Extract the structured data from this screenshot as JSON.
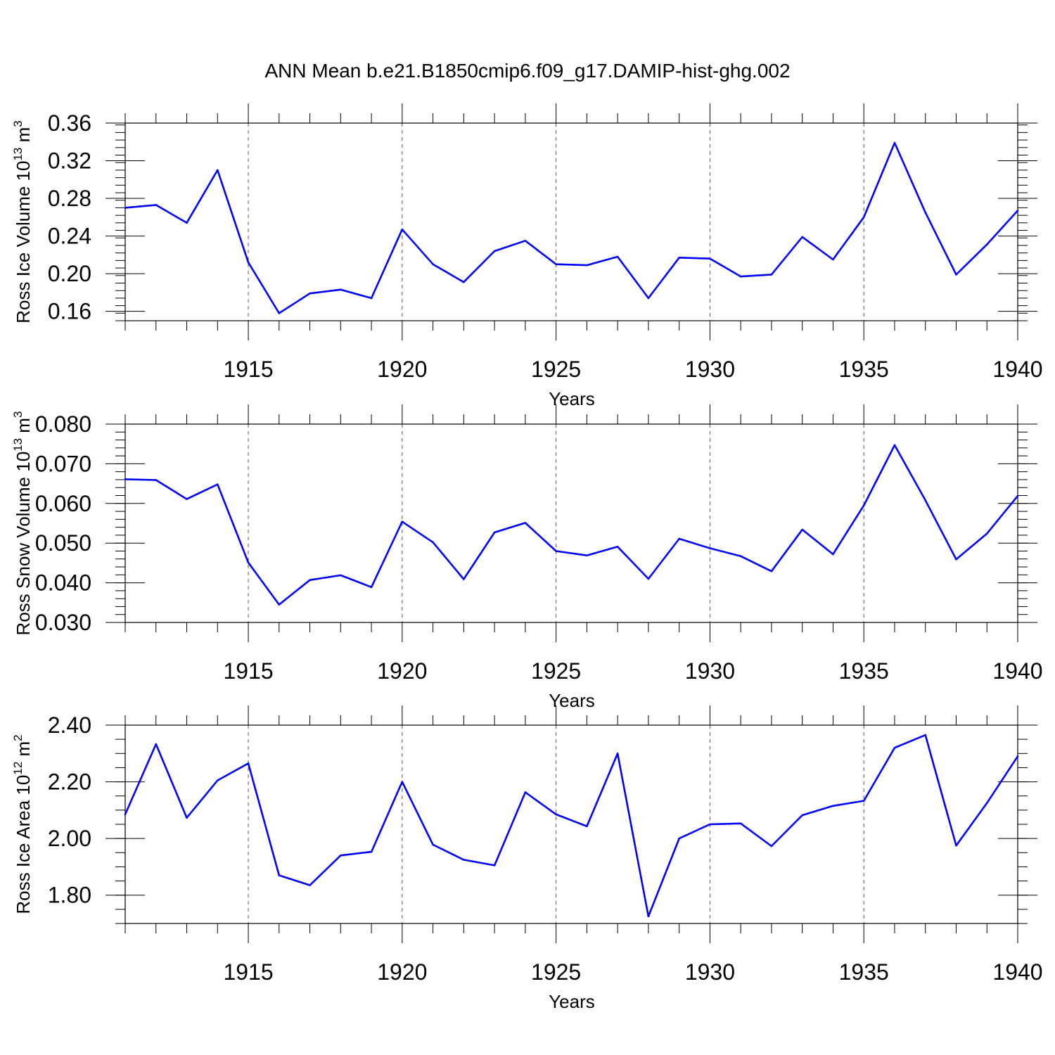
{
  "figure": {
    "title": "ANN Mean b.e21.B1850cmip6.f09_g17.DAMIP-hist-ghg.002",
    "line_color": "#0000ff"
  },
  "chart_data": [
    {
      "type": "line",
      "title": "",
      "xlabel": "Years",
      "ylabel": {
        "pre": "Ross Ice Volume 10",
        "exp": "13",
        "post": " m",
        "exp2": "3"
      },
      "xlim": [
        1911,
        1940
      ],
      "ylim": [
        0.15,
        0.36
      ],
      "x_ticks": [
        1915,
        1920,
        1925,
        1930,
        1935,
        1940
      ],
      "x_tick_labels": [
        "1915",
        "1920",
        "1925",
        "1930",
        "1935",
        "1940"
      ],
      "y_ticks": [
        0.16,
        0.2,
        0.24,
        0.28,
        0.32,
        0.36
      ],
      "y_tick_labels": [
        "0.16",
        "0.20",
        "0.24",
        "0.28",
        "0.32",
        "0.36"
      ],
      "y_minor_step": 0.008,
      "grid": "vertical-dashed",
      "series": [
        {
          "x": [
            1911,
            1912,
            1913,
            1914,
            1915,
            1916,
            1917,
            1918,
            1919,
            1920,
            1921,
            1922,
            1923,
            1924,
            1925,
            1926,
            1927,
            1928,
            1929,
            1930,
            1931,
            1932,
            1933,
            1934,
            1935,
            1936,
            1937,
            1938,
            1939,
            1940
          ],
          "values": [
            0.27,
            0.273,
            0.254,
            0.31,
            0.212,
            0.158,
            0.179,
            0.183,
            0.174,
            0.247,
            0.21,
            0.191,
            0.224,
            0.235,
            0.21,
            0.209,
            0.218,
            0.174,
            0.217,
            0.216,
            0.197,
            0.199,
            0.239,
            0.215,
            0.26,
            0.339,
            0.265,
            0.199,
            0.231,
            0.267
          ]
        }
      ]
    },
    {
      "type": "line",
      "title": "",
      "xlabel": "Years",
      "ylabel": {
        "pre": "Ross Snow Volume 10",
        "exp": "13",
        "post": " m",
        "exp2": "3"
      },
      "xlim": [
        1911,
        1940
      ],
      "ylim": [
        0.03,
        0.08
      ],
      "x_ticks": [
        1915,
        1920,
        1925,
        1930,
        1935,
        1940
      ],
      "x_tick_labels": [
        "1915",
        "1920",
        "1925",
        "1930",
        "1935",
        "1940"
      ],
      "y_ticks": [
        0.03,
        0.04,
        0.05,
        0.06,
        0.07,
        0.08
      ],
      "y_tick_labels": [
        "0.030",
        "0.040",
        "0.050",
        "0.060",
        "0.070",
        "0.080"
      ],
      "y_minor_step": 0.002,
      "grid": "vertical-dashed",
      "series": [
        {
          "x": [
            1911,
            1912,
            1913,
            1914,
            1915,
            1916,
            1917,
            1918,
            1919,
            1920,
            1921,
            1922,
            1923,
            1924,
            1925,
            1926,
            1927,
            1928,
            1929,
            1930,
            1931,
            1932,
            1933,
            1934,
            1935,
            1936,
            1937,
            1938,
            1939,
            1940
          ],
          "values": [
            0.0661,
            0.0659,
            0.0611,
            0.0648,
            0.0451,
            0.0345,
            0.0407,
            0.0419,
            0.0389,
            0.0554,
            0.0502,
            0.0409,
            0.0527,
            0.0551,
            0.048,
            0.0469,
            0.0491,
            0.041,
            0.0511,
            0.0487,
            0.0467,
            0.0429,
            0.0534,
            0.0472,
            0.0595,
            0.0747,
            0.0608,
            0.0459,
            0.0524,
            0.0619
          ]
        }
      ]
    },
    {
      "type": "line",
      "title": "",
      "xlabel": "Years",
      "ylabel": {
        "pre": "Ross Ice Area 10",
        "exp": "12",
        "post": " m",
        "exp2": "2"
      },
      "xlim": [
        1911,
        1940
      ],
      "ylim": [
        1.7,
        2.4
      ],
      "x_ticks": [
        1915,
        1920,
        1925,
        1930,
        1935,
        1940
      ],
      "x_tick_labels": [
        "1915",
        "1920",
        "1925",
        "1930",
        "1935",
        "1940"
      ],
      "y_ticks": [
        1.8,
        2.0,
        2.2,
        2.4
      ],
      "y_tick_labels": [
        "1.80",
        "2.00",
        "2.20",
        "2.40"
      ],
      "y_minor_step": 0.05,
      "grid": "vertical-dashed",
      "series": [
        {
          "x": [
            1911,
            1912,
            1913,
            1914,
            1915,
            1916,
            1917,
            1918,
            1919,
            1920,
            1921,
            1922,
            1923,
            1924,
            1925,
            1926,
            1927,
            1928,
            1929,
            1930,
            1931,
            1932,
            1933,
            1934,
            1935,
            1936,
            1937,
            1938,
            1939,
            1940
          ],
          "values": [
            2.085,
            2.333,
            2.073,
            2.205,
            2.265,
            1.87,
            1.835,
            1.94,
            1.953,
            2.2,
            1.978,
            1.925,
            1.905,
            2.163,
            2.085,
            2.043,
            2.3,
            1.725,
            2.0,
            2.05,
            2.053,
            1.973,
            2.082,
            2.115,
            2.133,
            2.32,
            2.365,
            1.975,
            2.125,
            2.29
          ]
        }
      ]
    }
  ]
}
